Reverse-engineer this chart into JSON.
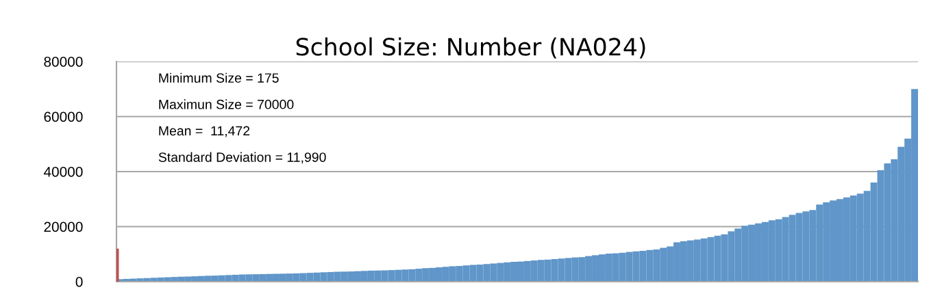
{
  "chart_data": {
    "type": "bar",
    "title": "School Size: Number (NA024)",
    "categories": [
      null,
      null,
      null,
      null,
      null,
      null,
      null,
      null,
      null,
      null,
      null,
      null,
      null,
      null,
      null,
      null,
      null,
      null,
      null,
      null,
      null,
      null,
      null,
      null,
      null,
      null,
      null,
      null,
      null,
      null,
      null,
      null,
      null,
      null,
      null,
      null,
      null,
      null,
      null,
      null,
      null,
      null,
      null,
      null,
      null,
      null,
      null,
      null,
      null,
      null,
      null,
      null,
      null,
      null,
      null,
      null,
      null,
      null,
      null,
      null,
      null,
      null,
      null,
      null,
      null,
      null,
      null,
      null,
      null,
      null,
      null,
      null,
      null,
      null,
      null,
      null,
      null,
      null,
      null,
      null,
      null,
      null,
      null,
      null,
      null,
      null,
      null,
      null,
      null,
      null,
      null,
      null,
      null,
      null,
      null,
      null,
      null,
      null,
      null,
      null,
      null,
      null,
      null,
      null,
      null,
      null,
      null,
      null,
      null,
      null,
      null,
      null,
      null,
      null,
      null,
      null,
      null,
      null
    ],
    "series": [
      {
        "color": "#c0504d",
        "values": [
          12000,
          null,
          null,
          null,
          null,
          null,
          null,
          null,
          null,
          null,
          null,
          null,
          null,
          null,
          null,
          null,
          null,
          null,
          null,
          null,
          null,
          null,
          null,
          null,
          null,
          null,
          null,
          null,
          null,
          null,
          null,
          null,
          null,
          null,
          null,
          null,
          null,
          null,
          null,
          null,
          null,
          null,
          null,
          null,
          null,
          null,
          null,
          null,
          null,
          null,
          null,
          null,
          null,
          null,
          null,
          null,
          null,
          null,
          null,
          null,
          null,
          null,
          null,
          null,
          null,
          null,
          null,
          null,
          null,
          null,
          null,
          null,
          null,
          null,
          null,
          null,
          null,
          null,
          null,
          null,
          null,
          null,
          null,
          null,
          null,
          null,
          null,
          null,
          null,
          null,
          null,
          null,
          null,
          null,
          null,
          null,
          null,
          null,
          null,
          null,
          null,
          null,
          null,
          null,
          null,
          null,
          null,
          null,
          null,
          null,
          null,
          null,
          null,
          null,
          null,
          null,
          null,
          null
        ]
      },
      {
        "color": "#6096c9",
        "values": [
          900,
          1000,
          1100,
          1200,
          1300,
          1400,
          1500,
          1600,
          1700,
          1800,
          1850,
          1950,
          2050,
          2150,
          2200,
          2300,
          2400,
          2500,
          2600,
          2650,
          2700,
          2750,
          2800,
          2850,
          2900,
          2950,
          3000,
          3100,
          3200,
          3300,
          3400,
          3500,
          3600,
          3650,
          3700,
          3800,
          3900,
          4000,
          4050,
          4100,
          4200,
          4300,
          4400,
          4500,
          4700,
          4900,
          5000,
          5200,
          5400,
          5600,
          5700,
          5900,
          6100,
          6200,
          6400,
          6600,
          6800,
          7000,
          7200,
          7300,
          7500,
          7700,
          7900,
          8000,
          8200,
          8400,
          8600,
          8800,
          8900,
          9300,
          9600,
          9900,
          10200,
          10300,
          10500,
          10800,
          11000,
          11200,
          11500,
          11700,
          12300,
          12800,
          14300,
          14700,
          15000,
          15300,
          15700,
          16200,
          16700,
          17200,
          18300,
          19300,
          20300,
          20700,
          21200,
          21700,
          22300,
          22700,
          23500,
          24300,
          25000,
          25500,
          26000,
          28000,
          28800,
          29500,
          30000,
          30600,
          31300,
          32000,
          33000,
          36000,
          40500,
          43000,
          44500,
          49000,
          52000,
          70000
        ]
      }
    ],
    "ylim": [
      0,
      80000
    ],
    "yticks": [
      0,
      20000,
      40000,
      60000,
      80000
    ],
    "grid": "y",
    "tick_labels": "y",
    "legend": false,
    "annotations": [
      "Minimum Size = 175",
      "Maximun Size = 70000",
      "Mean =  11,472",
      "Standard Deviation = 11,990"
    ]
  }
}
